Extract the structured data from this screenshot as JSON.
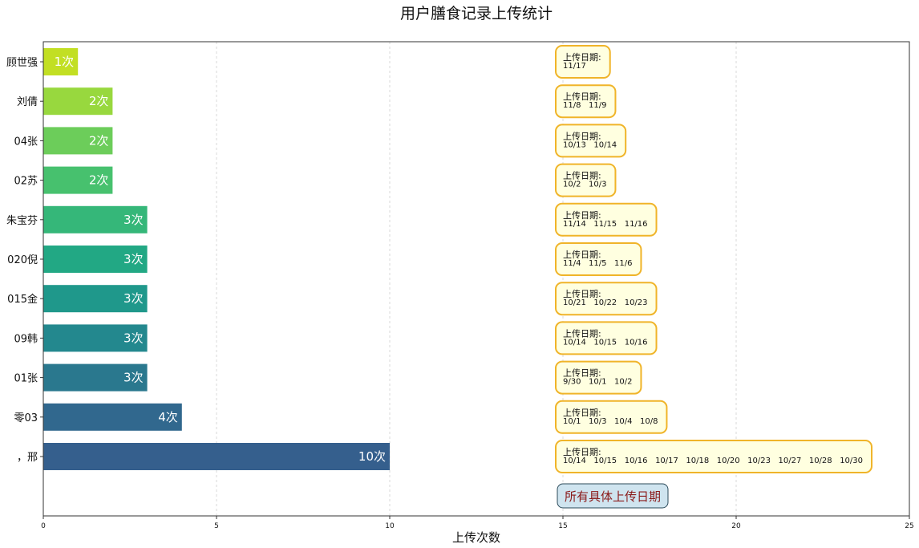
{
  "chart_data": {
    "type": "bar",
    "orientation": "horizontal",
    "title": "用户膳食记录上传统计",
    "xlabel": "上传次数",
    "ylabel": "",
    "xlim": [
      0,
      25
    ],
    "xticks": [
      "0",
      "5",
      "10",
      "15",
      "20",
      "25"
    ],
    "grid": "x-dashed",
    "date_box_label": "上传日期:",
    "summary_label": "所有具体上传日期",
    "categories": [
      "顾世强",
      "刘倩",
      "04张",
      "02苏",
      "朱宝芬",
      "020倪",
      "015金",
      "09韩",
      "01张",
      "零03",
      "，邢"
    ],
    "values": [
      1,
      2,
      2,
      2,
      3,
      3,
      3,
      3,
      3,
      4,
      10
    ],
    "value_labels": [
      "1次",
      "2次",
      "2次",
      "2次",
      "3次",
      "3次",
      "3次",
      "3次",
      "3次",
      "4次",
      "10次"
    ],
    "dates": [
      "11/17",
      "11/8   11/9",
      "10/13   10/14",
      "10/2   10/3",
      "11/14   11/15   11/16",
      "11/4   11/5   11/6",
      "10/21   10/22   10/23",
      "10/14   10/15   10/16",
      "9/30   10/1   10/2",
      "10/1   10/3   10/4   10/8",
      "10/14   10/15   10/16   10/17   10/18   10/20   10/23   10/27   10/28   10/30"
    ],
    "colors": [
      "#c2df23",
      "#98d83e",
      "#6ccd5a",
      "#47c16e",
      "#35b779",
      "#22a884",
      "#1f988b",
      "#23888e",
      "#2a788e",
      "#31688e",
      "#355f8d"
    ]
  }
}
